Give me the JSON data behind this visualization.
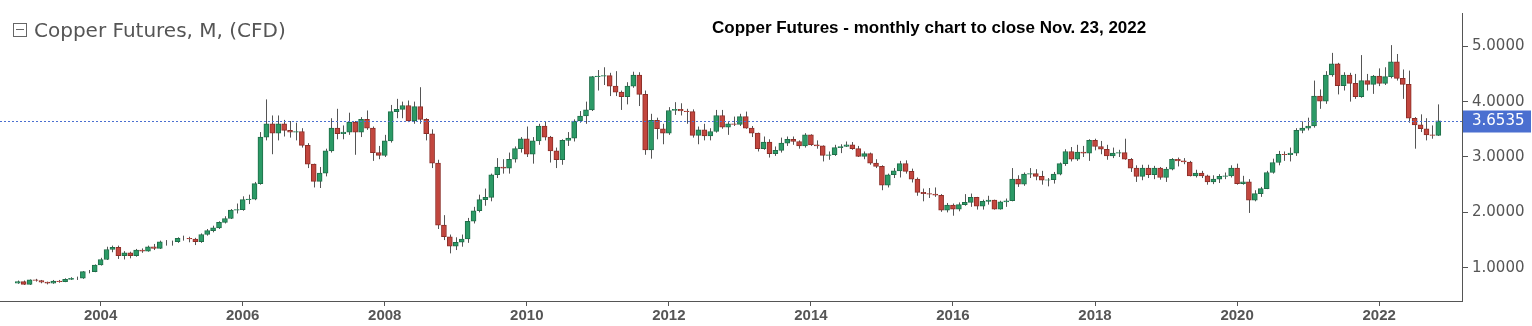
{
  "chart_data": {
    "type": "candlestick",
    "title": "Copper Futures - monthly chart to close Nov. 23, 2022",
    "subtitle": "Copper Futures, M, (CFD)",
    "x": [
      "2002-11",
      "2002-12",
      "2003-01",
      "2003-02",
      "2003-03",
      "2003-04",
      "2003-05",
      "2003-06",
      "2003-07",
      "2003-08",
      "2003-09",
      "2003-10",
      "2003-11",
      "2003-12",
      "2004-01",
      "2004-02",
      "2004-03",
      "2004-04",
      "2004-05",
      "2004-06",
      "2004-07",
      "2004-08",
      "2004-09",
      "2004-10",
      "2004-11",
      "2004-12",
      "2005-01",
      "2005-02",
      "2005-03",
      "2005-04",
      "2005-05",
      "2005-06",
      "2005-07",
      "2005-08",
      "2005-09",
      "2005-10",
      "2005-11",
      "2005-12",
      "2006-01",
      "2006-02",
      "2006-03",
      "2006-04",
      "2006-05",
      "2006-06",
      "2006-07",
      "2006-08",
      "2006-09",
      "2006-10",
      "2006-11",
      "2006-12",
      "2007-01",
      "2007-02",
      "2007-03",
      "2007-04",
      "2007-05",
      "2007-06",
      "2007-07",
      "2007-08",
      "2007-09",
      "2007-10",
      "2007-11",
      "2007-12",
      "2008-01",
      "2008-02",
      "2008-03",
      "2008-04",
      "2008-05",
      "2008-06",
      "2008-07",
      "2008-08",
      "2008-09",
      "2008-10",
      "2008-11",
      "2008-12",
      "2009-01",
      "2009-02",
      "2009-03",
      "2009-04",
      "2009-05",
      "2009-06",
      "2009-07",
      "2009-08",
      "2009-09",
      "2009-10",
      "2009-11",
      "2009-12",
      "2010-01",
      "2010-02",
      "2010-03",
      "2010-04",
      "2010-05",
      "2010-06",
      "2010-07",
      "2010-08",
      "2010-09",
      "2010-10",
      "2010-11",
      "2010-12",
      "2011-01",
      "2011-02",
      "2011-03",
      "2011-04",
      "2011-05",
      "2011-06",
      "2011-07",
      "2011-08",
      "2011-09",
      "2011-10",
      "2011-11",
      "2011-12",
      "2012-01",
      "2012-02",
      "2012-03",
      "2012-04",
      "2012-05",
      "2012-06",
      "2012-07",
      "2012-08",
      "2012-09",
      "2012-10",
      "2012-11",
      "2012-12",
      "2013-01",
      "2013-02",
      "2013-03",
      "2013-04",
      "2013-05",
      "2013-06",
      "2013-07",
      "2013-08",
      "2013-09",
      "2013-10",
      "2013-11",
      "2013-12",
      "2014-01",
      "2014-02",
      "2014-03",
      "2014-04",
      "2014-05",
      "2014-06",
      "2014-07",
      "2014-08",
      "2014-09",
      "2014-10",
      "2014-11",
      "2014-12",
      "2015-01",
      "2015-02",
      "2015-03",
      "2015-04",
      "2015-05",
      "2015-06",
      "2015-07",
      "2015-08",
      "2015-09",
      "2015-10",
      "2015-11",
      "2015-12",
      "2016-01",
      "2016-02",
      "2016-03",
      "2016-04",
      "2016-05",
      "2016-06",
      "2016-07",
      "2016-08",
      "2016-09",
      "2016-10",
      "2016-11",
      "2016-12",
      "2017-01",
      "2017-02",
      "2017-03",
      "2017-04",
      "2017-05",
      "2017-06",
      "2017-07",
      "2017-08",
      "2017-09",
      "2017-10",
      "2017-11",
      "2017-12",
      "2018-01",
      "2018-02",
      "2018-03",
      "2018-04",
      "2018-05",
      "2018-06",
      "2018-07",
      "2018-08",
      "2018-09",
      "2018-10",
      "2018-11",
      "2018-12",
      "2019-01",
      "2019-02",
      "2019-03",
      "2019-04",
      "2019-05",
      "2019-06",
      "2019-07",
      "2019-08",
      "2019-09",
      "2019-10",
      "2019-11",
      "2019-12",
      "2020-01",
      "2020-02",
      "2020-03",
      "2020-04",
      "2020-05",
      "2020-06",
      "2020-07",
      "2020-08",
      "2020-09",
      "2020-10",
      "2020-11",
      "2020-12",
      "2021-01",
      "2021-02",
      "2021-03",
      "2021-04",
      "2021-05",
      "2021-06",
      "2021-07",
      "2021-08",
      "2021-09",
      "2021-10",
      "2021-11",
      "2021-12",
      "2022-01",
      "2022-02",
      "2022-03",
      "2022-04",
      "2022-05",
      "2022-06",
      "2022-07",
      "2022-08",
      "2022-09",
      "2022-10",
      "2022-11"
    ],
    "ohlc": [
      [
        0.72,
        0.77,
        0.71,
        0.75
      ],
      [
        0.75,
        0.77,
        0.69,
        0.7
      ],
      [
        0.7,
        0.79,
        0.69,
        0.78
      ],
      [
        0.78,
        0.8,
        0.75,
        0.77
      ],
      [
        0.77,
        0.78,
        0.72,
        0.74
      ],
      [
        0.74,
        0.75,
        0.7,
        0.72
      ],
      [
        0.72,
        0.78,
        0.71,
        0.76
      ],
      [
        0.76,
        0.78,
        0.73,
        0.75
      ],
      [
        0.75,
        0.81,
        0.74,
        0.79
      ],
      [
        0.79,
        0.83,
        0.78,
        0.81
      ],
      [
        0.81,
        0.84,
        0.78,
        0.81
      ],
      [
        0.81,
        0.94,
        0.8,
        0.93
      ],
      [
        0.93,
        0.96,
        0.9,
        0.93
      ],
      [
        0.93,
        1.06,
        0.92,
        1.05
      ],
      [
        1.05,
        1.18,
        1.04,
        1.15
      ],
      [
        1.15,
        1.38,
        1.14,
        1.33
      ],
      [
        1.33,
        1.4,
        1.28,
        1.37
      ],
      [
        1.37,
        1.4,
        1.16,
        1.22
      ],
      [
        1.22,
        1.3,
        1.15,
        1.27
      ],
      [
        1.27,
        1.29,
        1.17,
        1.22
      ],
      [
        1.22,
        1.34,
        1.2,
        1.32
      ],
      [
        1.32,
        1.35,
        1.27,
        1.3
      ],
      [
        1.3,
        1.4,
        1.29,
        1.38
      ],
      [
        1.38,
        1.43,
        1.32,
        1.35
      ],
      [
        1.35,
        1.49,
        1.34,
        1.47
      ],
      [
        1.47,
        1.5,
        1.4,
        1.47
      ],
      [
        1.47,
        1.49,
        1.4,
        1.47
      ],
      [
        1.47,
        1.55,
        1.45,
        1.53
      ],
      [
        1.53,
        1.58,
        1.49,
        1.53
      ],
      [
        1.53,
        1.56,
        1.46,
        1.52
      ],
      [
        1.52,
        1.54,
        1.41,
        1.47
      ],
      [
        1.47,
        1.62,
        1.45,
        1.6
      ],
      [
        1.6,
        1.7,
        1.58,
        1.67
      ],
      [
        1.67,
        1.76,
        1.64,
        1.72
      ],
      [
        1.72,
        1.84,
        1.7,
        1.82
      ],
      [
        1.82,
        1.93,
        1.8,
        1.89
      ],
      [
        1.89,
        2.06,
        1.88,
        2.04
      ],
      [
        2.04,
        2.16,
        1.98,
        2.05
      ],
      [
        2.05,
        2.29,
        2.03,
        2.23
      ],
      [
        2.23,
        2.32,
        2.15,
        2.24
      ],
      [
        2.24,
        2.55,
        2.22,
        2.52
      ],
      [
        2.52,
        3.45,
        2.5,
        3.36
      ],
      [
        3.36,
        4.04,
        3.3,
        3.6
      ],
      [
        3.6,
        3.75,
        3.05,
        3.43
      ],
      [
        3.43,
        3.75,
        3.3,
        3.6
      ],
      [
        3.6,
        3.67,
        3.37,
        3.48
      ],
      [
        3.48,
        3.65,
        3.35,
        3.45
      ],
      [
        3.45,
        3.62,
        3.3,
        3.46
      ],
      [
        3.46,
        3.52,
        3.17,
        3.21
      ],
      [
        3.21,
        3.25,
        2.8,
        2.87
      ],
      [
        2.87,
        2.88,
        2.45,
        2.56
      ],
      [
        2.56,
        2.82,
        2.44,
        2.71
      ],
      [
        2.71,
        3.15,
        2.65,
        3.11
      ],
      [
        3.11,
        3.7,
        3.08,
        3.52
      ],
      [
        3.52,
        3.87,
        3.32,
        3.42
      ],
      [
        3.42,
        3.57,
        3.32,
        3.45
      ],
      [
        3.45,
        3.8,
        3.4,
        3.63
      ],
      [
        3.63,
        3.65,
        3.04,
        3.45
      ],
      [
        3.45,
        3.72,
        3.36,
        3.68
      ],
      [
        3.68,
        3.84,
        3.49,
        3.52
      ],
      [
        3.52,
        3.55,
        2.93,
        3.08
      ],
      [
        3.08,
        3.2,
        2.96,
        3.03
      ],
      [
        3.03,
        3.4,
        3.0,
        3.29
      ],
      [
        3.29,
        3.94,
        3.26,
        3.82
      ],
      [
        3.82,
        4.05,
        3.7,
        3.86
      ],
      [
        3.86,
        4.0,
        3.7,
        3.93
      ],
      [
        3.93,
        4.02,
        3.63,
        3.65
      ],
      [
        3.65,
        4.0,
        3.6,
        3.91
      ],
      [
        3.91,
        4.26,
        3.6,
        3.68
      ],
      [
        3.68,
        3.7,
        3.3,
        3.42
      ],
      [
        3.42,
        3.5,
        2.8,
        2.89
      ],
      [
        2.89,
        2.95,
        1.7,
        1.77
      ],
      [
        1.77,
        1.95,
        1.5,
        1.56
      ],
      [
        1.56,
        1.6,
        1.26,
        1.39
      ],
      [
        1.39,
        1.55,
        1.32,
        1.46
      ],
      [
        1.46,
        1.6,
        1.38,
        1.52
      ],
      [
        1.52,
        1.9,
        1.45,
        1.84
      ],
      [
        1.84,
        2.1,
        1.8,
        2.03
      ],
      [
        2.03,
        2.32,
        2.0,
        2.23
      ],
      [
        2.23,
        2.43,
        2.12,
        2.27
      ],
      [
        2.27,
        2.7,
        2.2,
        2.68
      ],
      [
        2.68,
        2.98,
        2.62,
        2.82
      ],
      [
        2.82,
        2.96,
        2.7,
        2.8
      ],
      [
        2.8,
        3.08,
        2.7,
        2.96
      ],
      [
        2.96,
        3.19,
        2.9,
        3.15
      ],
      [
        3.15,
        3.36,
        3.08,
        3.33
      ],
      [
        3.33,
        3.55,
        3.0,
        3.05
      ],
      [
        3.05,
        3.36,
        2.88,
        3.29
      ],
      [
        3.29,
        3.6,
        3.22,
        3.56
      ],
      [
        3.56,
        3.65,
        3.3,
        3.36
      ],
      [
        3.36,
        3.38,
        2.9,
        3.11
      ],
      [
        3.11,
        3.17,
        2.8,
        2.95
      ],
      [
        2.95,
        3.32,
        2.86,
        3.3
      ],
      [
        3.3,
        3.45,
        3.2,
        3.34
      ],
      [
        3.34,
        3.68,
        3.28,
        3.65
      ],
      [
        3.65,
        3.83,
        3.62,
        3.74
      ],
      [
        3.74,
        4.0,
        3.6,
        3.85
      ],
      [
        3.85,
        4.46,
        3.83,
        4.45
      ],
      [
        4.45,
        4.57,
        4.2,
        4.46
      ],
      [
        4.46,
        4.62,
        4.3,
        4.47
      ],
      [
        4.47,
        4.52,
        4.1,
        4.28
      ],
      [
        4.28,
        4.55,
        4.1,
        4.17
      ],
      [
        4.17,
        4.2,
        3.85,
        4.09
      ],
      [
        4.09,
        4.35,
        3.95,
        4.28
      ],
      [
        4.28,
        4.54,
        4.25,
        4.48
      ],
      [
        4.48,
        4.53,
        3.92,
        4.13
      ],
      [
        4.13,
        4.2,
        3.04,
        3.13
      ],
      [
        3.13,
        3.78,
        2.97,
        3.66
      ],
      [
        3.66,
        3.71,
        3.32,
        3.51
      ],
      [
        3.51,
        3.6,
        3.23,
        3.43
      ],
      [
        3.43,
        3.9,
        3.4,
        3.84
      ],
      [
        3.84,
        3.99,
        3.76,
        3.86
      ],
      [
        3.86,
        3.97,
        3.75,
        3.83
      ],
      [
        3.83,
        3.87,
        3.6,
        3.82
      ],
      [
        3.82,
        3.86,
        3.35,
        3.39
      ],
      [
        3.39,
        3.55,
        3.23,
        3.49
      ],
      [
        3.49,
        3.6,
        3.3,
        3.38
      ],
      [
        3.38,
        3.52,
        3.3,
        3.46
      ],
      [
        3.46,
        3.85,
        3.44,
        3.75
      ],
      [
        3.75,
        3.85,
        3.51,
        3.54
      ],
      [
        3.54,
        3.63,
        3.4,
        3.6
      ],
      [
        3.6,
        3.73,
        3.56,
        3.59
      ],
      [
        3.59,
        3.78,
        3.56,
        3.73
      ],
      [
        3.73,
        3.82,
        3.51,
        3.52
      ],
      [
        3.52,
        3.56,
        3.36,
        3.43
      ],
      [
        3.43,
        3.44,
        3.1,
        3.15
      ],
      [
        3.15,
        3.37,
        3.13,
        3.27
      ],
      [
        3.27,
        3.32,
        2.99,
        3.06
      ],
      [
        3.06,
        3.19,
        3.02,
        3.12
      ],
      [
        3.12,
        3.35,
        3.08,
        3.25
      ],
      [
        3.25,
        3.37,
        3.2,
        3.32
      ],
      [
        3.32,
        3.37,
        3.22,
        3.28
      ],
      [
        3.28,
        3.3,
        3.15,
        3.2
      ],
      [
        3.2,
        3.43,
        3.17,
        3.4
      ],
      [
        3.4,
        3.41,
        3.2,
        3.22
      ],
      [
        3.22,
        3.3,
        3.15,
        3.2
      ],
      [
        3.2,
        3.21,
        2.92,
        3.03
      ],
      [
        3.03,
        3.1,
        2.95,
        3.04
      ],
      [
        3.04,
        3.22,
        3.02,
        3.17
      ],
      [
        3.17,
        3.23,
        3.07,
        3.19
      ],
      [
        3.19,
        3.28,
        3.18,
        3.22
      ],
      [
        3.22,
        3.27,
        3.13,
        3.15
      ],
      [
        3.15,
        3.2,
        3.0,
        3.01
      ],
      [
        3.01,
        3.1,
        2.96,
        3.06
      ],
      [
        3.06,
        3.08,
        2.86,
        2.89
      ],
      [
        2.89,
        2.96,
        2.8,
        2.83
      ],
      [
        2.83,
        2.85,
        2.4,
        2.49
      ],
      [
        2.49,
        2.7,
        2.45,
        2.68
      ],
      [
        2.68,
        2.8,
        2.62,
        2.75
      ],
      [
        2.75,
        2.93,
        2.63,
        2.88
      ],
      [
        2.88,
        2.94,
        2.7,
        2.74
      ],
      [
        2.74,
        2.79,
        2.54,
        2.6
      ],
      [
        2.6,
        2.63,
        2.3,
        2.36
      ],
      [
        2.36,
        2.43,
        2.2,
        2.34
      ],
      [
        2.34,
        2.44,
        2.26,
        2.33
      ],
      [
        2.33,
        2.45,
        2.28,
        2.31
      ],
      [
        2.31,
        2.33,
        2.01,
        2.04
      ],
      [
        2.04,
        2.17,
        2.0,
        2.13
      ],
      [
        2.13,
        2.16,
        1.94,
        2.06
      ],
      [
        2.06,
        2.18,
        2.02,
        2.14
      ],
      [
        2.14,
        2.33,
        2.12,
        2.18
      ],
      [
        2.18,
        2.34,
        2.1,
        2.27
      ],
      [
        2.27,
        2.28,
        2.05,
        2.11
      ],
      [
        2.11,
        2.23,
        2.05,
        2.2
      ],
      [
        2.2,
        2.3,
        2.14,
        2.22
      ],
      [
        2.22,
        2.23,
        2.05,
        2.06
      ],
      [
        2.06,
        2.21,
        2.05,
        2.19
      ],
      [
        2.19,
        2.25,
        2.1,
        2.21
      ],
      [
        2.21,
        2.8,
        2.2,
        2.6
      ],
      [
        2.6,
        2.67,
        2.46,
        2.51
      ],
      [
        2.51,
        2.72,
        2.48,
        2.69
      ],
      [
        2.69,
        2.8,
        2.62,
        2.7
      ],
      [
        2.7,
        2.78,
        2.58,
        2.65
      ],
      [
        2.65,
        2.75,
        2.5,
        2.58
      ],
      [
        2.58,
        2.62,
        2.47,
        2.59
      ],
      [
        2.59,
        2.73,
        2.52,
        2.69
      ],
      [
        2.69,
        2.9,
        2.67,
        2.88
      ],
      [
        2.88,
        3.14,
        2.84,
        3.1
      ],
      [
        3.1,
        3.18,
        2.92,
        2.96
      ],
      [
        2.96,
        3.22,
        2.93,
        3.09
      ],
      [
        3.09,
        3.2,
        3.0,
        3.07
      ],
      [
        3.07,
        3.32,
        2.93,
        3.3
      ],
      [
        3.3,
        3.33,
        3.12,
        3.19
      ],
      [
        3.19,
        3.29,
        3.05,
        3.14
      ],
      [
        3.14,
        3.22,
        2.95,
        3.02
      ],
      [
        3.02,
        3.17,
        2.98,
        3.07
      ],
      [
        3.07,
        3.13,
        3.0,
        3.08
      ],
      [
        3.08,
        3.33,
        2.95,
        2.96
      ],
      [
        2.96,
        2.98,
        2.73,
        2.8
      ],
      [
        2.8,
        2.85,
        2.55,
        2.65
      ],
      [
        2.65,
        2.86,
        2.58,
        2.8
      ],
      [
        2.8,
        2.86,
        2.62,
        2.68
      ],
      [
        2.68,
        2.84,
        2.6,
        2.8
      ],
      [
        2.8,
        2.82,
        2.59,
        2.63
      ],
      [
        2.63,
        2.82,
        2.55,
        2.78
      ],
      [
        2.78,
        2.98,
        2.76,
        2.96
      ],
      [
        2.96,
        2.99,
        2.83,
        2.93
      ],
      [
        2.93,
        2.98,
        2.87,
        2.91
      ],
      [
        2.91,
        2.93,
        2.65,
        2.66
      ],
      [
        2.66,
        2.77,
        2.63,
        2.71
      ],
      [
        2.71,
        2.75,
        2.62,
        2.66
      ],
      [
        2.66,
        2.68,
        2.5,
        2.55
      ],
      [
        2.55,
        2.67,
        2.51,
        2.6
      ],
      [
        2.6,
        2.69,
        2.53,
        2.65
      ],
      [
        2.65,
        2.72,
        2.6,
        2.66
      ],
      [
        2.66,
        2.85,
        2.63,
        2.8
      ],
      [
        2.8,
        2.88,
        2.5,
        2.52
      ],
      [
        2.52,
        2.66,
        2.5,
        2.55
      ],
      [
        2.55,
        2.6,
        1.99,
        2.22
      ],
      [
        2.22,
        2.4,
        2.2,
        2.34
      ],
      [
        2.34,
        2.46,
        2.28,
        2.43
      ],
      [
        2.43,
        2.75,
        2.42,
        2.72
      ],
      [
        2.72,
        2.97,
        2.7,
        2.9
      ],
      [
        2.9,
        3.11,
        2.85,
        3.05
      ],
      [
        3.05,
        3.1,
        2.93,
        3.04
      ],
      [
        3.04,
        3.17,
        2.92,
        3.07
      ],
      [
        3.07,
        3.52,
        3.02,
        3.48
      ],
      [
        3.48,
        3.64,
        3.43,
        3.52
      ],
      [
        3.52,
        3.71,
        3.48,
        3.56
      ],
      [
        3.56,
        4.38,
        3.53,
        4.1
      ],
      [
        4.1,
        4.22,
        3.87,
        4.01
      ],
      [
        4.01,
        4.55,
        3.96,
        4.48
      ],
      [
        4.48,
        4.88,
        4.45,
        4.68
      ],
      [
        4.68,
        4.7,
        4.13,
        4.29
      ],
      [
        4.29,
        4.53,
        4.2,
        4.48
      ],
      [
        4.48,
        4.52,
        4.0,
        4.33
      ],
      [
        4.33,
        4.5,
        4.05,
        4.09
      ],
      [
        4.09,
        4.84,
        4.07,
        4.38
      ],
      [
        4.38,
        4.5,
        4.2,
        4.31
      ],
      [
        4.31,
        4.48,
        4.14,
        4.46
      ],
      [
        4.46,
        4.6,
        4.28,
        4.33
      ],
      [
        4.33,
        4.62,
        4.3,
        4.45
      ],
      [
        4.45,
        5.02,
        4.42,
        4.72
      ],
      [
        4.72,
        4.86,
        4.38,
        4.42
      ],
      [
        4.42,
        4.58,
        4.05,
        4.31
      ],
      [
        4.31,
        4.56,
        3.62,
        3.7
      ],
      [
        3.7,
        3.72,
        3.15,
        3.58
      ],
      [
        3.58,
        3.77,
        3.45,
        3.51
      ],
      [
        3.51,
        3.7,
        3.3,
        3.4
      ],
      [
        3.4,
        3.57,
        3.33,
        3.39
      ],
      [
        3.39,
        3.95,
        3.38,
        3.6535
      ]
    ],
    "xlim": [
      "2002-08",
      "2023-03"
    ],
    "xticks": [
      "2004",
      "2006",
      "2008",
      "2010",
      "2012",
      "2014",
      "2016",
      "2018",
      "2020",
      "2022"
    ],
    "ylim": [
      0.4,
      5.6
    ],
    "yticks": [
      {
        "value": 1,
        "label": "1.0000"
      },
      {
        "value": 2,
        "label": "2.0000"
      },
      {
        "value": 3,
        "label": "3.0000"
      },
      {
        "value": 4,
        "label": "4.0000"
      },
      {
        "value": 5,
        "label": "5.0000"
      }
    ],
    "ref_lines": [
      {
        "axis": "y",
        "value": 3.6535,
        "label": "3.6535",
        "color": "#4a6fd0",
        "line_style": "dotted"
      }
    ],
    "grid": false,
    "legend": false
  }
}
